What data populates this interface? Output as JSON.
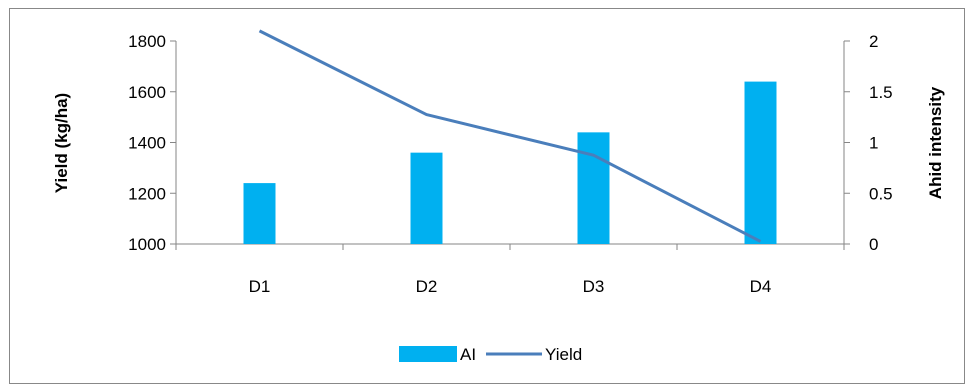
{
  "chart_data": {
    "type": "bar",
    "categories": [
      "D1",
      "D2",
      "D3",
      "D4"
    ],
    "series": [
      {
        "name": "AI",
        "type": "bar",
        "axis": "right",
        "color": "#00b0f0",
        "values": [
          0.6,
          0.9,
          1.1,
          1.6
        ]
      },
      {
        "name": "Yield",
        "type": "line",
        "axis": "left",
        "color": "#4a7ebb",
        "values": [
          1840,
          1510,
          1350,
          1010
        ]
      }
    ],
    "ylabel": "Yield (kg/ha)",
    "y2label": "Ahid intensity",
    "ylim": [
      1000,
      1800
    ],
    "y2lim": [
      0,
      2
    ],
    "yticks": [
      "1000",
      "1200",
      "1400",
      "1600",
      "1800"
    ],
    "y2ticks": [
      "0",
      "0.5",
      "1",
      "1.5",
      "2"
    ],
    "grid": false,
    "legend_position": "bottom"
  }
}
